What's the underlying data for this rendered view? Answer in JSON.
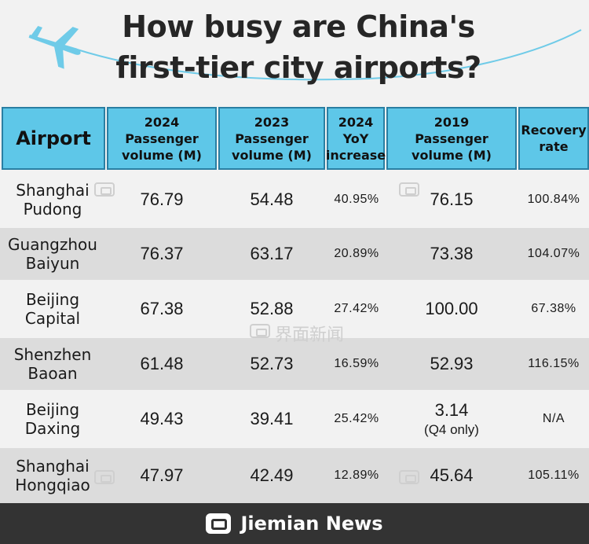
{
  "title": {
    "line1": "How busy are China's",
    "line2": "first-tier city airports?"
  },
  "icons": {
    "plane": "airplane-icon",
    "watermark": "jiemian-logo-icon"
  },
  "colors": {
    "header_bg": "#5ec7e8",
    "header_border": "#2a7fa3",
    "row_alt": "#dcdcdc",
    "footer": "#333333"
  },
  "table": {
    "headers": {
      "airport": "Airport",
      "pv2024": "2024\nPassenger\nvolume (M)",
      "pv2023": "2023\nPassenger\nvolume (M)",
      "yoy": "2024\nYoY\nincrease",
      "pv2019": "2019\nPassenger\nvolume (M)",
      "recovery": "Recovery\nrate"
    },
    "rows": [
      {
        "airport": "Shanghai\nPudong",
        "v2024": "76.79",
        "v2023": "54.48",
        "yoy": "40.95%",
        "v2019": "76.15",
        "note": "",
        "recovery": "100.84%"
      },
      {
        "airport": "Guangzhou\nBaiyun",
        "v2024": "76.37",
        "v2023": "63.17",
        "yoy": "20.89%",
        "v2019": "73.38",
        "note": "",
        "recovery": "104.07%"
      },
      {
        "airport": "Beijing\nCapital",
        "v2024": "67.38",
        "v2023": "52.88",
        "yoy": "27.42%",
        "v2019": "100.00",
        "note": "",
        "recovery": "67.38%"
      },
      {
        "airport": "Shenzhen\nBaoan",
        "v2024": "61.48",
        "v2023": "52.73",
        "yoy": "16.59%",
        "v2019": "52.93",
        "note": "",
        "recovery": "116.15%"
      },
      {
        "airport": "Beijing\nDaxing",
        "v2024": "49.43",
        "v2023": "39.41",
        "yoy": "25.42%",
        "v2019": "3.14",
        "note": "(Q4 only)",
        "recovery": "N/A"
      },
      {
        "airport": "Shanghai\nHongqiao",
        "v2024": "47.97",
        "v2023": "42.49",
        "yoy": "12.89%",
        "v2019": "45.64",
        "note": "",
        "recovery": "105.11%"
      }
    ]
  },
  "watermark": "界面新闻",
  "footer": {
    "brand": "Jiemian News"
  }
}
